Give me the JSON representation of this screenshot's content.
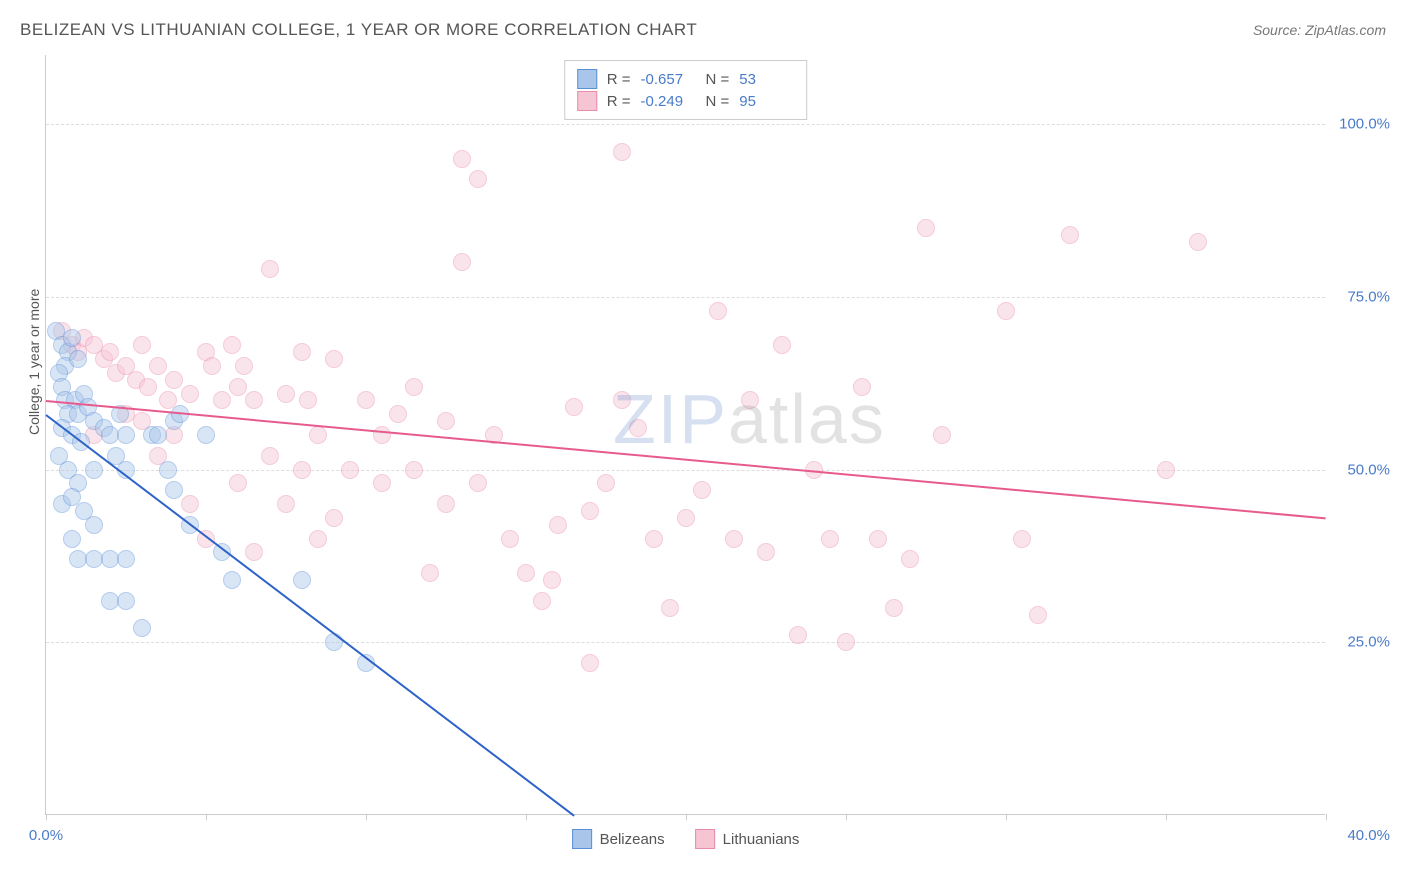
{
  "title": "BELIZEAN VS LITHUANIAN COLLEGE, 1 YEAR OR MORE CORRELATION CHART",
  "source": "Source: ZipAtlas.com",
  "y_axis_label": "College, 1 year or more",
  "watermark": {
    "p1": "ZIP",
    "p2": "atlas"
  },
  "chart": {
    "type": "scatter",
    "xlim": [
      0,
      40
    ],
    "ylim": [
      0,
      110
    ],
    "x_ticks": [
      0,
      5,
      10,
      15,
      20,
      25,
      30,
      35,
      40
    ],
    "x_tick_labels": {
      "0": "0.0%",
      "40": "40.0%"
    },
    "y_ticks": [
      25,
      50,
      75,
      100
    ],
    "y_tick_labels": [
      "25.0%",
      "50.0%",
      "75.0%",
      "100.0%"
    ],
    "grid_color": "#dddddd",
    "background_color": "#ffffff",
    "point_radius": 9,
    "point_opacity": 0.45,
    "series": [
      {
        "name": "Belizeans",
        "color_fill": "#a9c6ea",
        "color_stroke": "#5b8fd6",
        "stats": {
          "R": "-0.657",
          "N": "53"
        },
        "trend": {
          "x1": 0,
          "y1": 58,
          "x2": 16.5,
          "y2": 0,
          "color": "#2d63c8",
          "width": 2
        },
        "points": [
          [
            0.3,
            70
          ],
          [
            0.5,
            68
          ],
          [
            0.7,
            67
          ],
          [
            0.6,
            65
          ],
          [
            0.4,
            64
          ],
          [
            0.8,
            69
          ],
          [
            1.0,
            66
          ],
          [
            0.5,
            62
          ],
          [
            0.6,
            60
          ],
          [
            0.9,
            60
          ],
          [
            1.2,
            61
          ],
          [
            0.7,
            58
          ],
          [
            0.5,
            56
          ],
          [
            1.0,
            58
          ],
          [
            1.3,
            59
          ],
          [
            0.8,
            55
          ],
          [
            1.5,
            57
          ],
          [
            1.1,
            54
          ],
          [
            0.4,
            52
          ],
          [
            0.7,
            50
          ],
          [
            1.0,
            48
          ],
          [
            1.5,
            50
          ],
          [
            1.8,
            56
          ],
          [
            2.0,
            55
          ],
          [
            2.3,
            58
          ],
          [
            2.5,
            55
          ],
          [
            0.5,
            45
          ],
          [
            0.8,
            46
          ],
          [
            1.2,
            44
          ],
          [
            1.5,
            42
          ],
          [
            2.2,
            52
          ],
          [
            2.5,
            50
          ],
          [
            0.8,
            40
          ],
          [
            1.0,
            37
          ],
          [
            1.5,
            37
          ],
          [
            2.0,
            37
          ],
          [
            2.5,
            37
          ],
          [
            3.3,
            55
          ],
          [
            3.5,
            55
          ],
          [
            3.8,
            50
          ],
          [
            4.0,
            47
          ],
          [
            4.5,
            42
          ],
          [
            5.5,
            38
          ],
          [
            5.8,
            34
          ],
          [
            2.0,
            31
          ],
          [
            2.5,
            31
          ],
          [
            3.0,
            27
          ],
          [
            8.0,
            34
          ],
          [
            9.0,
            25
          ],
          [
            10.0,
            22
          ],
          [
            4.0,
            57
          ],
          [
            4.2,
            58
          ],
          [
            5.0,
            55
          ]
        ]
      },
      {
        "name": "Lithuanians",
        "color_fill": "#f6c5d3",
        "color_stroke": "#e98bad",
        "stats": {
          "R": "-0.249",
          "N": "95"
        },
        "trend": {
          "x1": 0,
          "y1": 60,
          "x2": 40,
          "y2": 43,
          "color": "#e75a8d",
          "width": 2
        },
        "points": [
          [
            0.5,
            70
          ],
          [
            0.8,
            68
          ],
          [
            1.0,
            67
          ],
          [
            1.2,
            69
          ],
          [
            1.5,
            68
          ],
          [
            1.8,
            66
          ],
          [
            2.0,
            67
          ],
          [
            2.2,
            64
          ],
          [
            2.5,
            65
          ],
          [
            2.8,
            63
          ],
          [
            3.0,
            68
          ],
          [
            3.2,
            62
          ],
          [
            3.5,
            65
          ],
          [
            3.8,
            60
          ],
          [
            4.0,
            63
          ],
          [
            4.5,
            61
          ],
          [
            5.0,
            67
          ],
          [
            5.2,
            65
          ],
          [
            5.5,
            60
          ],
          [
            5.8,
            68
          ],
          [
            6.0,
            62
          ],
          [
            6.2,
            65
          ],
          [
            6.5,
            60
          ],
          [
            7.0,
            79
          ],
          [
            7.5,
            61
          ],
          [
            8.0,
            67
          ],
          [
            8.2,
            60
          ],
          [
            8.5,
            55
          ],
          [
            9.0,
            66
          ],
          [
            9.5,
            50
          ],
          [
            10.0,
            60
          ],
          [
            10.5,
            48
          ],
          [
            11.0,
            58
          ],
          [
            11.5,
            50
          ],
          [
            12.0,
            35
          ],
          [
            12.5,
            45
          ],
          [
            13.0,
            95
          ],
          [
            13.5,
            92
          ],
          [
            13.0,
            80
          ],
          [
            14.0,
            55
          ],
          [
            14.5,
            40
          ],
          [
            15.0,
            35
          ],
          [
            15.5,
            31
          ],
          [
            15.8,
            34
          ],
          [
            16.0,
            42
          ],
          [
            16.5,
            59
          ],
          [
            17.0,
            44
          ],
          [
            17.5,
            48
          ],
          [
            18.0,
            60
          ],
          [
            18.5,
            56
          ],
          [
            19.0,
            40
          ],
          [
            19.5,
            30
          ],
          [
            17.0,
            22
          ],
          [
            18.0,
            96
          ],
          [
            20.0,
            43
          ],
          [
            20.5,
            47
          ],
          [
            21.0,
            73
          ],
          [
            21.5,
            40
          ],
          [
            22.0,
            60
          ],
          [
            22.5,
            38
          ],
          [
            23.0,
            68
          ],
          [
            23.5,
            26
          ],
          [
            24.0,
            50
          ],
          [
            24.5,
            40
          ],
          [
            25.0,
            25
          ],
          [
            25.5,
            62
          ],
          [
            26.0,
            40
          ],
          [
            26.5,
            30
          ],
          [
            27.0,
            37
          ],
          [
            27.5,
            85
          ],
          [
            28.0,
            55
          ],
          [
            30.0,
            73
          ],
          [
            30.5,
            40
          ],
          [
            31.0,
            29
          ],
          [
            32.0,
            84
          ],
          [
            35.0,
            50
          ],
          [
            36.0,
            83
          ],
          [
            5.0,
            40
          ],
          [
            6.5,
            38
          ],
          [
            7.5,
            45
          ],
          [
            8.5,
            40
          ],
          [
            3.0,
            57
          ],
          [
            4.0,
            55
          ],
          [
            9.0,
            43
          ],
          [
            10.5,
            55
          ],
          [
            11.5,
            62
          ],
          [
            12.5,
            57
          ],
          [
            13.5,
            48
          ],
          [
            6.0,
            48
          ],
          [
            7.0,
            52
          ],
          [
            4.5,
            45
          ],
          [
            2.5,
            58
          ],
          [
            1.5,
            55
          ],
          [
            3.5,
            52
          ],
          [
            8.0,
            50
          ]
        ]
      }
    ]
  },
  "legend": {
    "items": [
      {
        "label": "Belizeans",
        "fill": "#a9c6ea",
        "stroke": "#5b8fd6"
      },
      {
        "label": "Lithuanians",
        "fill": "#f6c5d3",
        "stroke": "#e98bad"
      }
    ]
  }
}
